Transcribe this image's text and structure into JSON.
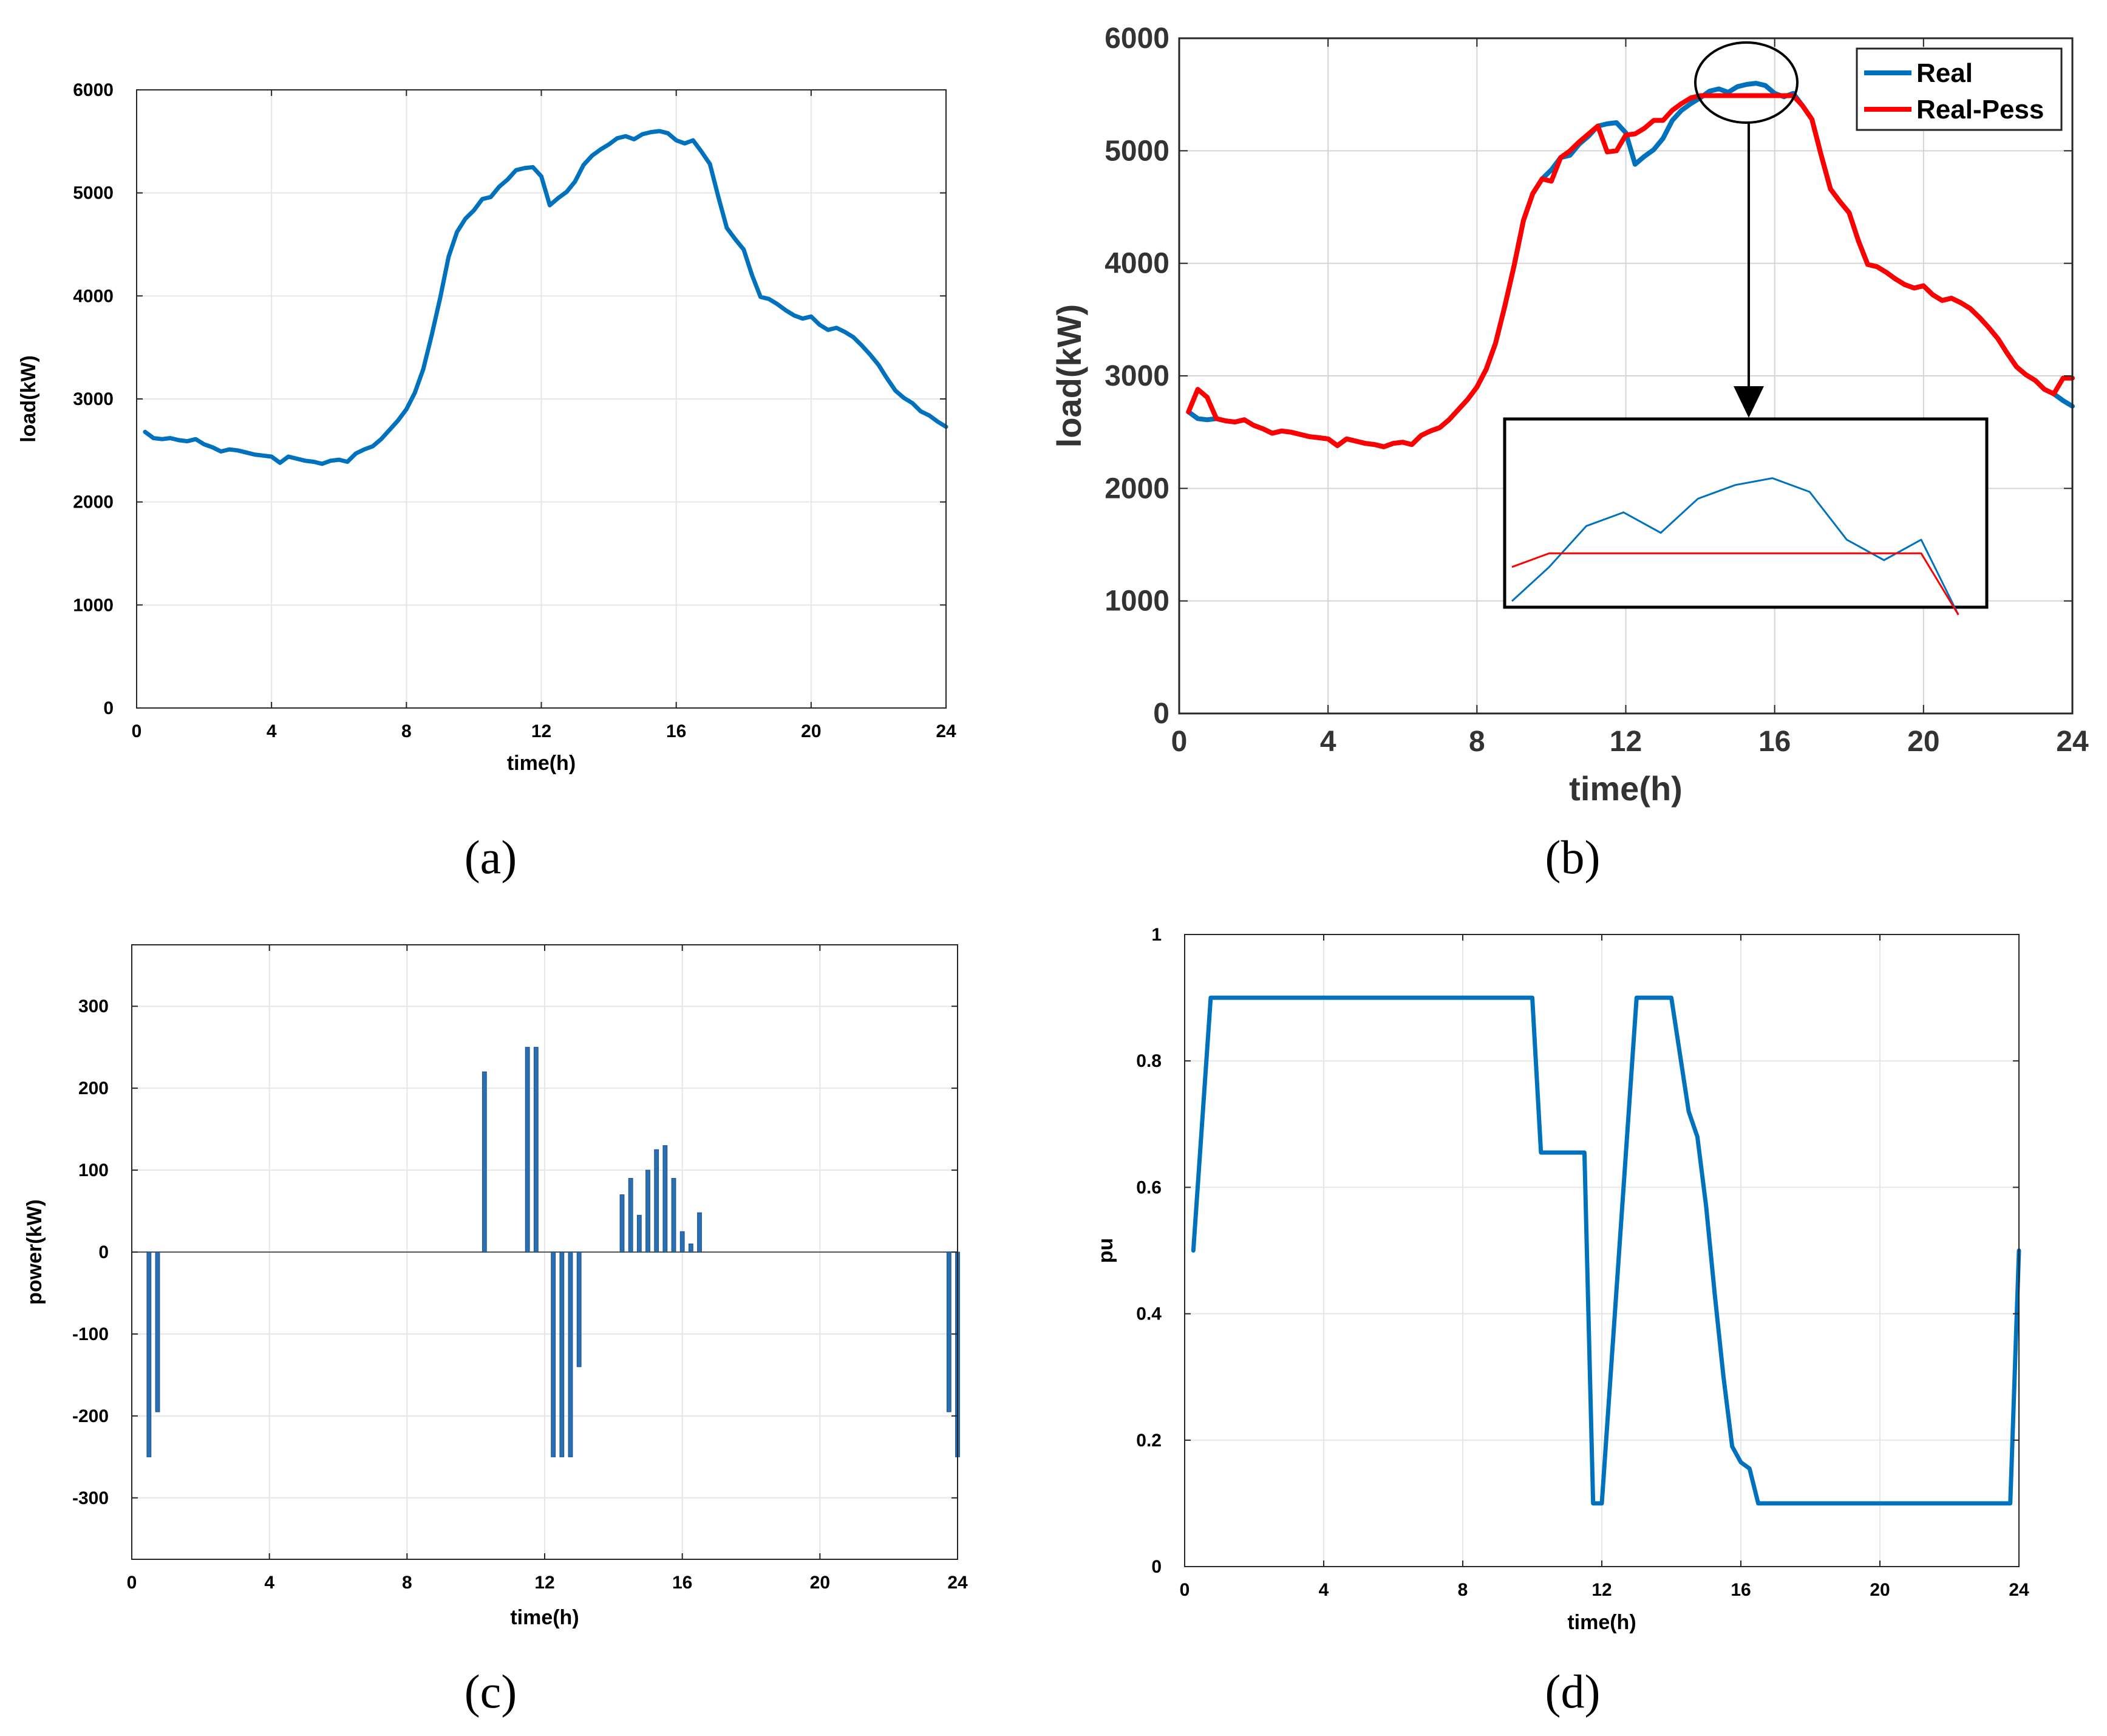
{
  "captions": {
    "a": "(a)",
    "b": "(b)",
    "c": "(c)",
    "d": "(d)"
  },
  "colors": {
    "blue": "#0072BD",
    "red": "#FF0000",
    "bar": "#2a6eb4"
  },
  "chart_data": [
    {
      "id": "a",
      "type": "line",
      "title": "",
      "xlabel": "time(h)",
      "ylabel": "load(kW)",
      "xlim": [
        0,
        24
      ],
      "ylim": [
        0,
        6000
      ],
      "xticks": [
        0,
        4,
        8,
        12,
        16,
        20,
        24
      ],
      "yticks": [
        0,
        1000,
        2000,
        3000,
        4000,
        5000,
        6000
      ],
      "grid": true,
      "series": [
        {
          "name": "load",
          "color": "#0072BD",
          "x": [
            0.25,
            0.5,
            0.75,
            1,
            1.25,
            1.5,
            1.75,
            2,
            2.25,
            2.5,
            2.75,
            3,
            3.25,
            3.5,
            3.75,
            4,
            4.25,
            4.5,
            4.75,
            5,
            5.25,
            5.5,
            5.75,
            6,
            6.25,
            6.5,
            6.75,
            7,
            7.25,
            7.5,
            7.75,
            8,
            8.25,
            8.5,
            8.75,
            9,
            9.25,
            9.5,
            9.75,
            10,
            10.25,
            10.5,
            10.75,
            11,
            11.25,
            11.5,
            11.75,
            12,
            12.25,
            12.5,
            12.75,
            13,
            13.25,
            13.5,
            13.75,
            14,
            14.25,
            14.5,
            14.75,
            15,
            15.25,
            15.5,
            15.75,
            16,
            16.25,
            16.5,
            16.75,
            17,
            17.25,
            17.5,
            17.75,
            18,
            18.25,
            18.5,
            18.75,
            19,
            19.25,
            19.5,
            19.75,
            20,
            20.25,
            20.5,
            20.75,
            21,
            21.25,
            21.5,
            21.75,
            22,
            22.25,
            22.5,
            22.75,
            23,
            23.25,
            23.5,
            23.75,
            24
          ],
          "y": [
            2680,
            2620,
            2610,
            2620,
            2600,
            2590,
            2610,
            2560,
            2530,
            2490,
            2510,
            2500,
            2480,
            2460,
            2450,
            2440,
            2380,
            2440,
            2420,
            2400,
            2390,
            2370,
            2400,
            2410,
            2390,
            2470,
            2510,
            2540,
            2610,
            2700,
            2790,
            2900,
            3060,
            3290,
            3620,
            3980,
            4380,
            4620,
            4750,
            4830,
            4940,
            4960,
            5060,
            5130,
            5220,
            5240,
            5250,
            5160,
            4880,
            4950,
            5010,
            5110,
            5270,
            5360,
            5420,
            5470,
            5530,
            5550,
            5520,
            5570,
            5590,
            5600,
            5580,
            5510,
            5480,
            5510,
            5400,
            5280,
            4960,
            4660,
            4550,
            4450,
            4200,
            3990,
            3970,
            3920,
            3860,
            3810,
            3780,
            3800,
            3720,
            3670,
            3690,
            3650,
            3600,
            3520,
            3430,
            3330,
            3200,
            3080,
            3010,
            2960,
            2880,
            2840,
            2780,
            2730
          ]
        }
      ]
    },
    {
      "id": "b",
      "type": "line",
      "title": "",
      "xlabel": "time(h)",
      "ylabel": "load(kW)",
      "xlim": [
        0,
        24
      ],
      "ylim": [
        0,
        6000
      ],
      "xticks": [
        0,
        4,
        8,
        12,
        16,
        20,
        24
      ],
      "yticks": [
        0,
        1000,
        2000,
        3000,
        4000,
        5000,
        6000
      ],
      "grid": true,
      "legend": {
        "position": "top-right",
        "entries": [
          "Real",
          "Real-Pess"
        ]
      },
      "annotation": "zoom inset of peak region 14-16.5 h",
      "series": [
        {
          "name": "Real",
          "color": "#0072BD",
          "x": [
            0.25,
            0.5,
            0.75,
            1,
            1.25,
            1.5,
            1.75,
            2,
            2.25,
            2.5,
            2.75,
            3,
            3.25,
            3.5,
            3.75,
            4,
            4.25,
            4.5,
            4.75,
            5,
            5.25,
            5.5,
            5.75,
            6,
            6.25,
            6.5,
            6.75,
            7,
            7.25,
            7.5,
            7.75,
            8,
            8.25,
            8.5,
            8.75,
            9,
            9.25,
            9.5,
            9.75,
            10,
            10.25,
            10.5,
            10.75,
            11,
            11.25,
            11.5,
            11.75,
            12,
            12.25,
            12.5,
            12.75,
            13,
            13.25,
            13.5,
            13.75,
            14,
            14.25,
            14.5,
            14.75,
            15,
            15.25,
            15.5,
            15.75,
            16,
            16.25,
            16.5,
            16.75,
            17,
            17.25,
            17.5,
            17.75,
            18,
            18.25,
            18.5,
            18.75,
            19,
            19.25,
            19.5,
            19.75,
            20,
            20.25,
            20.5,
            20.75,
            21,
            21.25,
            21.5,
            21.75,
            22,
            22.25,
            22.5,
            22.75,
            23,
            23.25,
            23.5,
            23.75,
            24
          ],
          "y": [
            2680,
            2620,
            2610,
            2620,
            2600,
            2590,
            2610,
            2560,
            2530,
            2490,
            2510,
            2500,
            2480,
            2460,
            2450,
            2440,
            2380,
            2440,
            2420,
            2400,
            2390,
            2370,
            2400,
            2410,
            2390,
            2470,
            2510,
            2540,
            2610,
            2700,
            2790,
            2900,
            3060,
            3290,
            3620,
            3980,
            4380,
            4620,
            4750,
            4830,
            4940,
            4960,
            5060,
            5130,
            5220,
            5240,
            5250,
            5160,
            4880,
            4950,
            5010,
            5110,
            5270,
            5360,
            5420,
            5470,
            5530,
            5550,
            5520,
            5570,
            5590,
            5600,
            5580,
            5510,
            5480,
            5510,
            5400,
            5280,
            4960,
            4660,
            4550,
            4450,
            4200,
            3990,
            3970,
            3920,
            3860,
            3810,
            3780,
            3800,
            3720,
            3670,
            3690,
            3650,
            3600,
            3520,
            3430,
            3330,
            3200,
            3080,
            3010,
            2960,
            2880,
            2840,
            2780,
            2730
          ]
        },
        {
          "name": "Real-Pess",
          "color": "#FF0000",
          "x": [
            0.25,
            0.5,
            0.75,
            1,
            1.25,
            1.5,
            1.75,
            2,
            2.25,
            2.5,
            2.75,
            3,
            3.25,
            3.5,
            3.75,
            4,
            4.25,
            4.5,
            4.75,
            5,
            5.25,
            5.5,
            5.75,
            6,
            6.25,
            6.5,
            6.75,
            7,
            7.25,
            7.5,
            7.75,
            8,
            8.25,
            8.5,
            8.75,
            9,
            9.25,
            9.5,
            9.75,
            10,
            10.25,
            10.5,
            10.75,
            11,
            11.25,
            11.5,
            11.75,
            12,
            12.25,
            12.5,
            12.75,
            13,
            13.25,
            13.5,
            13.75,
            14,
            14.25,
            14.5,
            14.75,
            15,
            15.25,
            15.5,
            15.75,
            16,
            16.25,
            16.5,
            16.75,
            17,
            17.25,
            17.5,
            17.75,
            18,
            18.25,
            18.5,
            18.75,
            19,
            19.25,
            19.5,
            19.75,
            20,
            20.25,
            20.5,
            20.75,
            21,
            21.25,
            21.5,
            21.75,
            22,
            22.25,
            22.5,
            22.75,
            23,
            23.25,
            23.5,
            23.75,
            24
          ],
          "y": [
            2680,
            2880,
            2810,
            2620,
            2600,
            2590,
            2610,
            2560,
            2530,
            2490,
            2510,
            2500,
            2480,
            2460,
            2450,
            2440,
            2380,
            2440,
            2420,
            2400,
            2390,
            2370,
            2400,
            2410,
            2390,
            2470,
            2510,
            2540,
            2610,
            2700,
            2790,
            2900,
            3060,
            3290,
            3620,
            3980,
            4380,
            4620,
            4750,
            4730,
            4940,
            5000,
            5080,
            5150,
            5220,
            4990,
            5000,
            5140,
            5150,
            5200,
            5270,
            5270,
            5360,
            5420,
            5470,
            5490,
            5490,
            5490,
            5490,
            5490,
            5490,
            5490,
            5490,
            5490,
            5490,
            5490,
            5400,
            5280,
            4960,
            4660,
            4550,
            4450,
            4200,
            3990,
            3970,
            3920,
            3860,
            3810,
            3780,
            3800,
            3720,
            3670,
            3690,
            3650,
            3600,
            3520,
            3430,
            3330,
            3200,
            3080,
            3010,
            2960,
            2880,
            2840,
            2980,
            2980
          ]
        }
      ]
    },
    {
      "id": "c",
      "type": "bar",
      "title": "",
      "xlabel": "time(h)",
      "ylabel": "power(kW)",
      "xlim": [
        0,
        24
      ],
      "ylim": [
        -375,
        375
      ],
      "xticks": [
        0,
        4,
        8,
        12,
        16,
        20,
        24
      ],
      "yticks": [
        -300,
        -200,
        -100,
        0,
        100,
        200,
        300
      ],
      "grid": true,
      "bar_width_h": 0.12,
      "series": [
        {
          "name": "power",
          "color": "#2a6eb4",
          "x": [
            0.5,
            0.75,
            10.25,
            11.5,
            11.75,
            12.25,
            12.5,
            12.75,
            13,
            14.25,
            14.5,
            14.75,
            15,
            15.25,
            15.5,
            15.75,
            16,
            16.25,
            16.5,
            23.75,
            24
          ],
          "values": [
            -250,
            -195,
            220,
            250,
            250,
            -250,
            -250,
            -250,
            -140,
            70,
            90,
            45,
            100,
            125,
            130,
            90,
            25,
            10,
            48,
            -195,
            -250
          ]
        }
      ]
    },
    {
      "id": "d",
      "type": "line",
      "title": "",
      "xlabel": "time(h)",
      "ylabel": "pu",
      "xlim": [
        0,
        24
      ],
      "ylim": [
        0,
        1
      ],
      "xticks": [
        0,
        4,
        8,
        12,
        16,
        20,
        24
      ],
      "yticks": [
        0,
        0.2,
        0.4,
        0.6,
        0.8,
        1
      ],
      "grid": true,
      "series": [
        {
          "name": "pu",
          "color": "#0072BD",
          "x": [
            0.25,
            0.75,
            10,
            10.25,
            11.5,
            11.75,
            12,
            13,
            14,
            14.5,
            14.75,
            15,
            15.25,
            15.5,
            15.75,
            16,
            16.25,
            16.5,
            23.75,
            24
          ],
          "y": [
            0.5,
            0.9,
            0.9,
            0.655,
            0.655,
            0.1,
            0.1,
            0.9,
            0.9,
            0.72,
            0.68,
            0.57,
            0.43,
            0.3,
            0.19,
            0.165,
            0.155,
            0.1,
            0.1,
            0.5
          ]
        }
      ]
    }
  ]
}
